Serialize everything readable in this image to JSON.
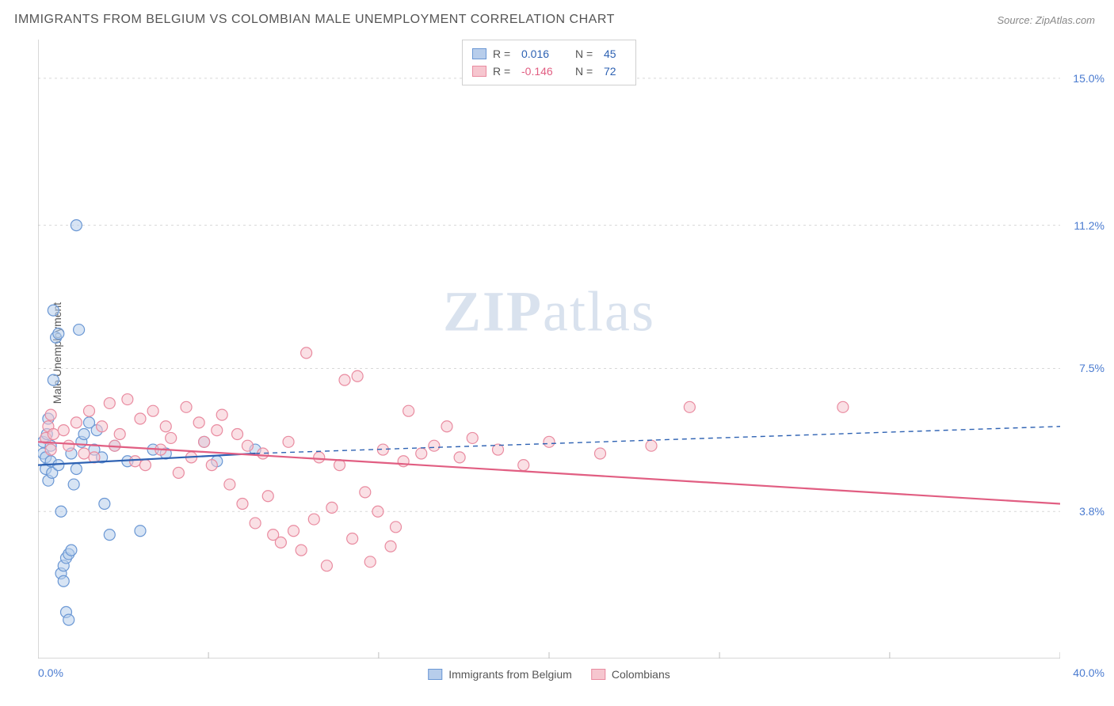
{
  "title": "IMMIGRANTS FROM BELGIUM VS COLOMBIAN MALE UNEMPLOYMENT CORRELATION CHART",
  "source": "Source: ZipAtlas.com",
  "yaxis_label": "Male Unemployment",
  "watermark_bold": "ZIP",
  "watermark_light": "atlas",
  "colors": {
    "series1_fill": "#b7cdeb",
    "series1_stroke": "#6a97d4",
    "series1_line": "#2e62b3",
    "series2_fill": "#f6c6cf",
    "series2_stroke": "#e98ba0",
    "series2_line": "#e15e82",
    "grid": "#d8d8d8",
    "axis": "#bfbfbf",
    "tick_text": "#4a7bd0",
    "title_text": "#555555",
    "source_text": "#888888",
    "background": "#ffffff"
  },
  "chart": {
    "type": "scatter",
    "xlim": [
      0,
      40
    ],
    "ylim": [
      0,
      16
    ],
    "y_gridlines": [
      3.8,
      7.5,
      11.2,
      15.0
    ],
    "y_tick_labels": [
      "3.8%",
      "7.5%",
      "11.2%",
      "15.0%"
    ],
    "x_tick_positions": [
      0,
      6.67,
      13.33,
      20.0,
      26.67,
      33.33,
      40.0
    ],
    "x_min_label": "0.0%",
    "x_max_label": "40.0%",
    "marker_radius": 7,
    "marker_opacity": 0.55,
    "line_width_solid": 2.2,
    "line_width_dash": 1.4,
    "dash_pattern": "6 5"
  },
  "legend_top": {
    "rows": [
      {
        "swatch_fill": "#b7cdeb",
        "swatch_stroke": "#6a97d4",
        "r_label": "R =",
        "r_value": "0.016",
        "r_color": "#2e62b3",
        "n_label": "N =",
        "n_value": "45",
        "n_color": "#2e62b3"
      },
      {
        "swatch_fill": "#f6c6cf",
        "swatch_stroke": "#e98ba0",
        "r_label": "R =",
        "r_value": "-0.146",
        "r_color": "#e15e82",
        "n_label": "N =",
        "n_value": "72",
        "n_color": "#2e62b3"
      }
    ]
  },
  "legend_bottom": {
    "items": [
      {
        "swatch_fill": "#b7cdeb",
        "swatch_stroke": "#6a97d4",
        "label": "Immigrants from Belgium"
      },
      {
        "swatch_fill": "#f6c6cf",
        "swatch_stroke": "#e98ba0",
        "label": "Colombians"
      }
    ]
  },
  "series": [
    {
      "name": "Immigrants from Belgium",
      "color_fill": "#b7cdeb",
      "color_stroke": "#6a97d4",
      "trend": {
        "x1": 0,
        "y1": 5.0,
        "x2_solid": 8.5,
        "y2_solid": 5.3,
        "x2_dash": 40,
        "y2_dash": 6.0,
        "color": "#2e62b3"
      },
      "points": [
        [
          0.2,
          5.3
        ],
        [
          0.2,
          5.6
        ],
        [
          0.3,
          4.9
        ],
        [
          0.3,
          5.2
        ],
        [
          0.35,
          5.8
        ],
        [
          0.4,
          4.6
        ],
        [
          0.4,
          6.2
        ],
        [
          0.5,
          5.1
        ],
        [
          0.5,
          5.5
        ],
        [
          0.55,
          4.8
        ],
        [
          0.6,
          9.0
        ],
        [
          0.6,
          7.2
        ],
        [
          0.7,
          8.3
        ],
        [
          0.8,
          8.4
        ],
        [
          0.8,
          5.0
        ],
        [
          0.9,
          3.8
        ],
        [
          0.9,
          2.2
        ],
        [
          1.0,
          2.0
        ],
        [
          1.0,
          2.4
        ],
        [
          1.1,
          2.6
        ],
        [
          1.1,
          1.2
        ],
        [
          1.2,
          1.0
        ],
        [
          1.2,
          2.7
        ],
        [
          1.3,
          2.8
        ],
        [
          1.3,
          5.3
        ],
        [
          1.4,
          4.5
        ],
        [
          1.5,
          4.9
        ],
        [
          1.5,
          11.2
        ],
        [
          1.6,
          8.5
        ],
        [
          1.7,
          5.6
        ],
        [
          1.8,
          5.8
        ],
        [
          2.0,
          6.1
        ],
        [
          2.2,
          5.4
        ],
        [
          2.3,
          5.9
        ],
        [
          2.5,
          5.2
        ],
        [
          2.6,
          4.0
        ],
        [
          2.8,
          3.2
        ],
        [
          3.0,
          5.5
        ],
        [
          3.5,
          5.1
        ],
        [
          4.0,
          3.3
        ],
        [
          4.5,
          5.4
        ],
        [
          5.0,
          5.3
        ],
        [
          6.5,
          5.6
        ],
        [
          7.0,
          5.1
        ],
        [
          8.5,
          5.4
        ]
      ]
    },
    {
      "name": "Colombians",
      "color_fill": "#f6c6cf",
      "color_stroke": "#e98ba0",
      "trend": {
        "x1": 0,
        "y1": 5.6,
        "x2_solid": 40,
        "y2_solid": 4.0,
        "x2_dash": 40,
        "y2_dash": 4.0,
        "color": "#e15e82"
      },
      "points": [
        [
          0.3,
          5.7
        ],
        [
          0.4,
          6.0
        ],
        [
          0.5,
          5.4
        ],
        [
          0.6,
          5.8
        ],
        [
          1.0,
          5.9
        ],
        [
          1.2,
          5.5
        ],
        [
          1.5,
          6.1
        ],
        [
          1.8,
          5.3
        ],
        [
          2.0,
          6.4
        ],
        [
          2.2,
          5.2
        ],
        [
          2.5,
          6.0
        ],
        [
          2.8,
          6.6
        ],
        [
          3.0,
          5.5
        ],
        [
          3.2,
          5.8
        ],
        [
          3.5,
          6.7
        ],
        [
          3.8,
          5.1
        ],
        [
          4.0,
          6.2
        ],
        [
          4.2,
          5.0
        ],
        [
          4.5,
          6.4
        ],
        [
          4.8,
          5.4
        ],
        [
          5.0,
          6.0
        ],
        [
          5.2,
          5.7
        ],
        [
          5.5,
          4.8
        ],
        [
          5.8,
          6.5
        ],
        [
          6.0,
          5.2
        ],
        [
          6.3,
          6.1
        ],
        [
          6.5,
          5.6
        ],
        [
          6.8,
          5.0
        ],
        [
          7.0,
          5.9
        ],
        [
          7.2,
          6.3
        ],
        [
          7.5,
          4.5
        ],
        [
          7.8,
          5.8
        ],
        [
          8.0,
          4.0
        ],
        [
          8.2,
          5.5
        ],
        [
          8.5,
          3.5
        ],
        [
          8.8,
          5.3
        ],
        [
          9.0,
          4.2
        ],
        [
          9.2,
          3.2
        ],
        [
          9.5,
          3.0
        ],
        [
          9.8,
          5.6
        ],
        [
          10.0,
          3.3
        ],
        [
          10.3,
          2.8
        ],
        [
          10.5,
          7.9
        ],
        [
          10.8,
          3.6
        ],
        [
          11.0,
          5.2
        ],
        [
          11.3,
          2.4
        ],
        [
          11.5,
          3.9
        ],
        [
          11.8,
          5.0
        ],
        [
          12.0,
          7.2
        ],
        [
          12.3,
          3.1
        ],
        [
          12.5,
          7.3
        ],
        [
          12.8,
          4.3
        ],
        [
          13.0,
          2.5
        ],
        [
          13.3,
          3.8
        ],
        [
          13.5,
          5.4
        ],
        [
          13.8,
          2.9
        ],
        [
          14.0,
          3.4
        ],
        [
          14.3,
          5.1
        ],
        [
          14.5,
          6.4
        ],
        [
          15.0,
          5.3
        ],
        [
          15.5,
          5.5
        ],
        [
          16.0,
          6.0
        ],
        [
          16.5,
          5.2
        ],
        [
          17.0,
          5.7
        ],
        [
          18.0,
          5.4
        ],
        [
          19.0,
          5.0
        ],
        [
          20.0,
          5.6
        ],
        [
          22.0,
          5.3
        ],
        [
          24.0,
          5.5
        ],
        [
          25.5,
          6.5
        ],
        [
          31.5,
          6.5
        ],
        [
          0.5,
          6.3
        ]
      ]
    }
  ]
}
